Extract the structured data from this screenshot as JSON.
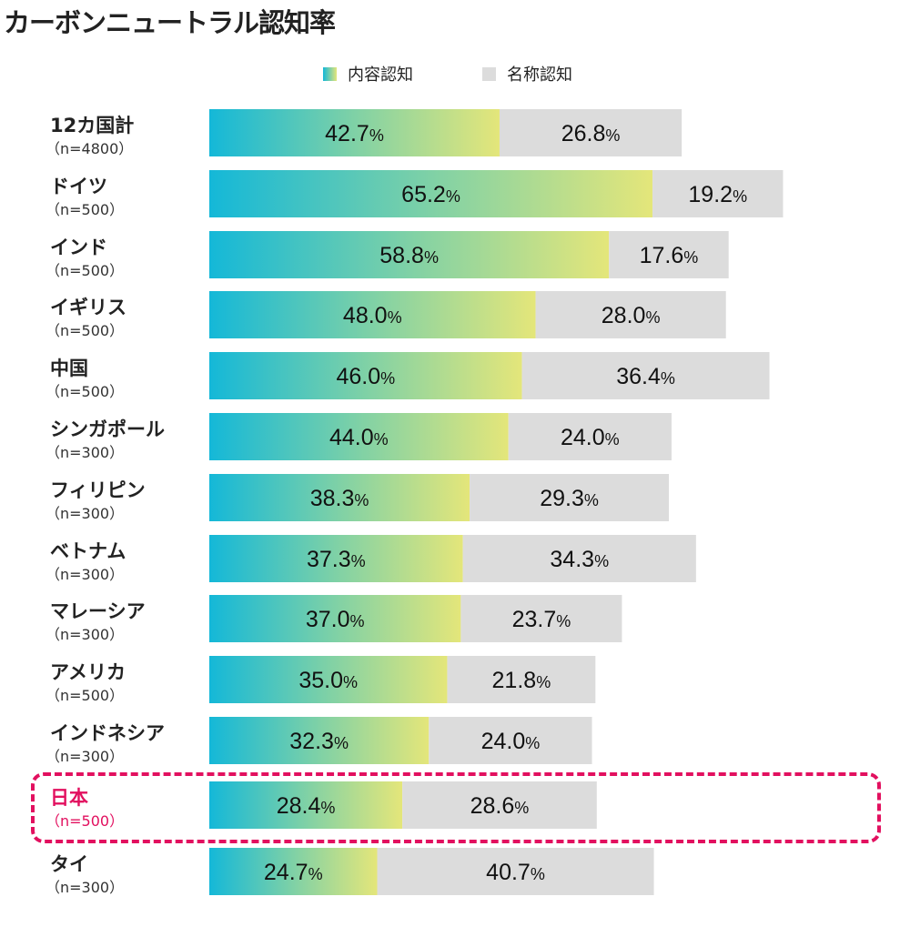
{
  "chart_data": {
    "type": "bar",
    "stacked": true,
    "orientation": "horizontal",
    "title": "カーボンニュートラル認知率",
    "legend_position": "top",
    "series": [
      {
        "name": "内容認知",
        "values": [
          42.7,
          65.2,
          58.8,
          48.0,
          46.0,
          44.0,
          38.3,
          37.3,
          37.0,
          35.0,
          32.3,
          28.4,
          24.7
        ],
        "color": "gradient #14b8d8 → #e4e67a"
      },
      {
        "name": "名称認知",
        "values": [
          26.8,
          19.2,
          17.6,
          28.0,
          36.4,
          24.0,
          29.3,
          34.3,
          23.7,
          21.8,
          24.0,
          28.6,
          40.7
        ],
        "color": "#dcdcdc"
      }
    ],
    "categories": [
      "12カ国計",
      "ドイツ",
      "インド",
      "イギリス",
      "中国",
      "シンガポール",
      "フィリピン",
      "ベトナム",
      "マレーシア",
      "アメリカ",
      "インドネシア",
      "日本",
      "タイ"
    ],
    "sample_sizes": [
      "（n=4800）",
      "（n=500）",
      "（n=500）",
      "（n=500）",
      "（n=500）",
      "（n=300）",
      "（n=300）",
      "（n=300）",
      "（n=300）",
      "（n=500）",
      "（n=300）",
      "（n=500）",
      "（n=300）"
    ],
    "value_suffix": "%",
    "highlight": "日本",
    "highlight_color": "#e2105f",
    "grid": false
  }
}
